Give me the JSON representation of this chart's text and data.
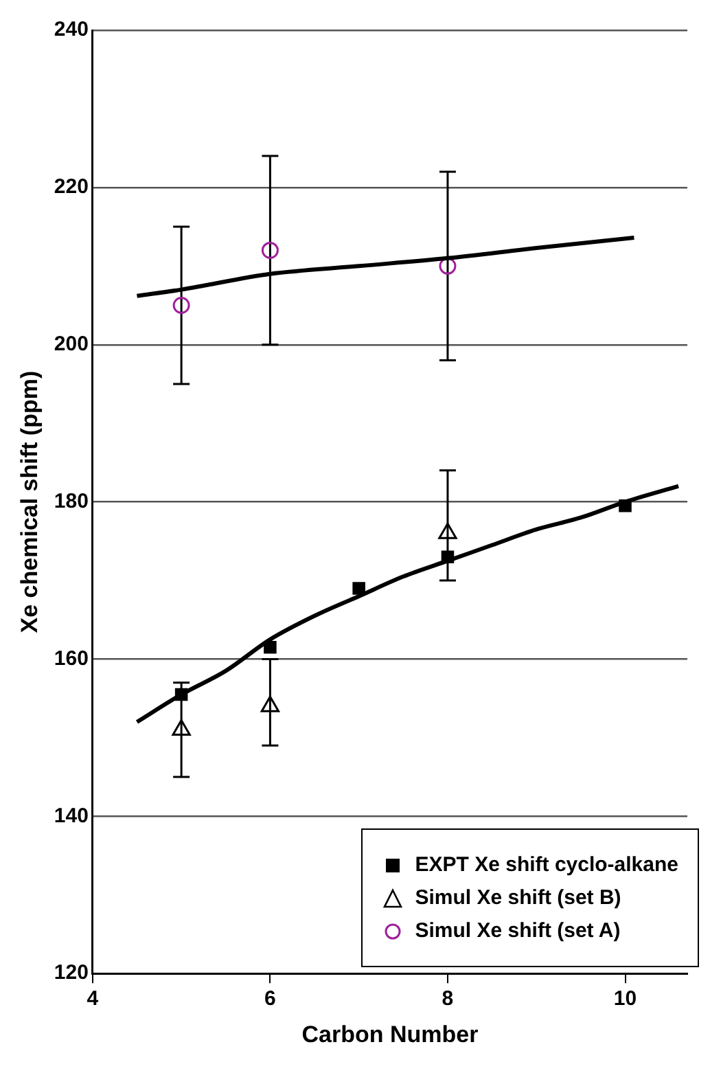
{
  "chart_data": {
    "type": "scatter",
    "xlabel": "Carbon Number",
    "ylabel": "Xe chemical shift (ppm)",
    "xlim": [
      4,
      10.7
    ],
    "xticks": [
      4,
      6,
      8,
      10
    ],
    "ylim": [
      120,
      240
    ],
    "yticks": [
      120,
      140,
      160,
      180,
      200,
      220,
      240
    ],
    "grid": "y",
    "legend": "bottom right",
    "series": [
      {
        "type": "line",
        "color": "#000000",
        "marker": "none",
        "x": [
          4.5,
          5,
          5.5,
          6,
          6.5,
          7,
          7.5,
          8,
          8.5,
          9,
          9.5,
          10,
          10.6
        ],
        "values": [
          152,
          155.5,
          158.5,
          162.5,
          165.5,
          168,
          170.5,
          172.5,
          174.5,
          176.5,
          178,
          180,
          182
        ]
      },
      {
        "type": "line",
        "color": "#000000",
        "marker": "none",
        "x": [
          4.5,
          5,
          6,
          7,
          8,
          9,
          10.1
        ],
        "values": [
          206.2,
          207,
          209,
          210,
          211,
          212.3,
          213.6
        ]
      },
      {
        "name": "EXPT Xe shift cyclo-alkane",
        "color": "#000000",
        "marker": "square",
        "x": [
          5,
          6,
          7,
          8,
          10
        ],
        "values": [
          155.5,
          161.5,
          169,
          173,
          179.5
        ]
      },
      {
        "name": "Simul Xe shift (set B)",
        "color": "#000000",
        "marker": "triangle",
        "x": [
          5,
          6,
          8
        ],
        "values": [
          151,
          154,
          176
        ],
        "errors": [
          [
            145,
            157
          ],
          [
            149,
            160
          ],
          [
            170,
            184
          ]
        ]
      },
      {
        "name": "Simul Xe shift (set A)",
        "color": "#a0209a",
        "marker": "circle",
        "x": [
          5,
          6,
          8
        ],
        "values": [
          205,
          212,
          210
        ],
        "errors": [
          [
            195,
            215
          ],
          [
            200,
            224
          ],
          [
            198,
            222
          ]
        ]
      }
    ]
  }
}
